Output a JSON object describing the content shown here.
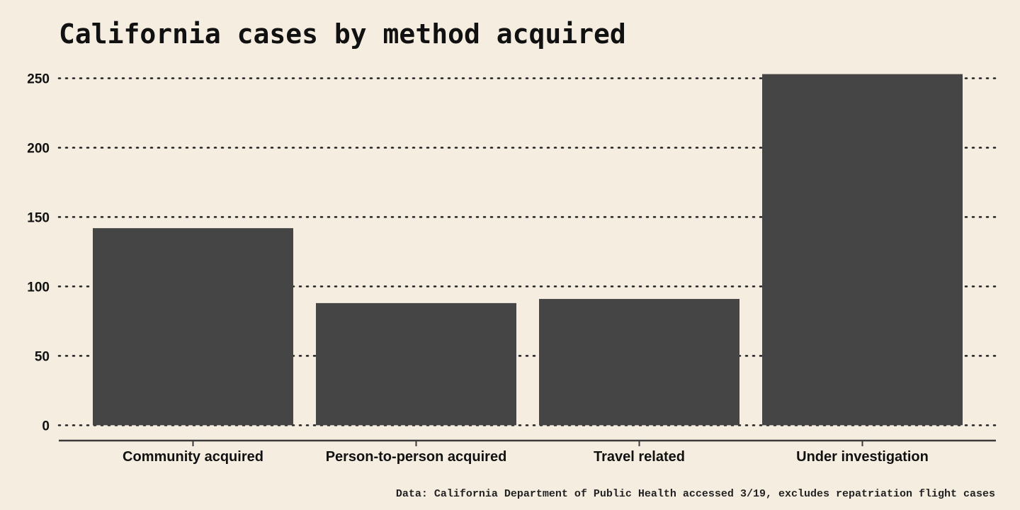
{
  "chart_data": {
    "type": "bar",
    "title": "California cases by method acquired",
    "xlabel": "",
    "ylabel": "",
    "categories": [
      "Community acquired",
      "Person-to-person acquired",
      "Travel related",
      "Under investigation"
    ],
    "values": [
      142,
      88,
      91,
      253
    ],
    "ylim": [
      -8,
      262
    ],
    "yticks": [
      0,
      50,
      100,
      150,
      200,
      250
    ],
    "grid": true,
    "legend": "none",
    "bar_color": "#454545",
    "background_color": "#f5ede0",
    "caption": "Data: California Department of Public Health accessed 3/19, excludes repatriation flight cases"
  }
}
